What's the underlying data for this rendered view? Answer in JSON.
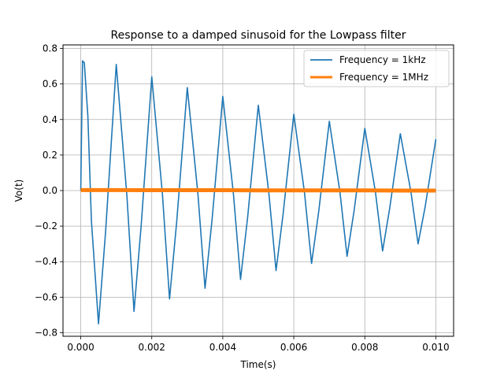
{
  "chart_data": {
    "type": "line",
    "title": "Response to a damped sinusoid for the Lowpass filter",
    "xlabel": "Time(s)",
    "ylabel": "Vo(t)",
    "xlim": [
      -0.0005,
      0.0105
    ],
    "ylim": [
      -0.82,
      0.82
    ],
    "grid": true,
    "legend_placement": "top-right",
    "x_ticks": [
      0.0,
      0.002,
      0.004,
      0.006,
      0.008,
      0.01
    ],
    "x_tick_labels": [
      "0.000",
      "0.002",
      "0.004",
      "0.006",
      "0.008",
      "0.010"
    ],
    "y_ticks": [
      -0.8,
      -0.6,
      -0.4,
      -0.2,
      0.0,
      0.2,
      0.4,
      0.6,
      0.8
    ],
    "y_tick_labels": [
      "−0.8",
      "−0.6",
      "−0.4",
      "−0.2",
      "0.0",
      "0.2",
      "0.4",
      "0.6",
      "0.8"
    ],
    "series": [
      {
        "name": "Frequency = 1kHz",
        "color": "#1f77b4",
        "x": [
          0.0,
          5e-05,
          0.0001,
          0.0002,
          0.0003,
          0.0005,
          0.0007,
          0.001,
          0.0013,
          0.0015,
          0.0017,
          0.002,
          0.0023,
          0.0025,
          0.0027,
          0.003,
          0.0033,
          0.0035,
          0.0037,
          0.004,
          0.0043,
          0.0045,
          0.0047,
          0.005,
          0.0053,
          0.0055,
          0.0057,
          0.006,
          0.0063,
          0.0065,
          0.0067,
          0.007,
          0.0073,
          0.0075,
          0.0077,
          0.008,
          0.0083,
          0.0085,
          0.0087,
          0.009,
          0.0093,
          0.0095,
          0.0097,
          0.01
        ],
        "y": [
          0.0,
          0.73,
          0.72,
          0.42,
          -0.17,
          -0.75,
          -0.23,
          0.71,
          -0.03,
          -0.68,
          -0.2,
          0.64,
          -0.02,
          -0.61,
          -0.18,
          0.58,
          -0.02,
          -0.55,
          -0.16,
          0.53,
          -0.02,
          -0.5,
          -0.15,
          0.48,
          -0.02,
          -0.45,
          -0.13,
          0.43,
          -0.01,
          -0.41,
          -0.12,
          0.39,
          -0.01,
          -0.37,
          -0.11,
          0.35,
          -0.01,
          -0.34,
          -0.1,
          0.32,
          -0.01,
          -0.3,
          -0.09,
          0.29
        ]
      },
      {
        "name": "Frequency = 1MHz",
        "color": "#ff7f0e",
        "x": [
          0.0,
          0.001,
          0.002,
          0.003,
          0.004,
          0.005,
          0.006,
          0.007,
          0.008,
          0.009,
          0.01
        ],
        "y": [
          0.003,
          0.003,
          0.002,
          0.002,
          0.002,
          0.001,
          0.001,
          0.001,
          0.001,
          0.0,
          0.0
        ]
      }
    ]
  }
}
